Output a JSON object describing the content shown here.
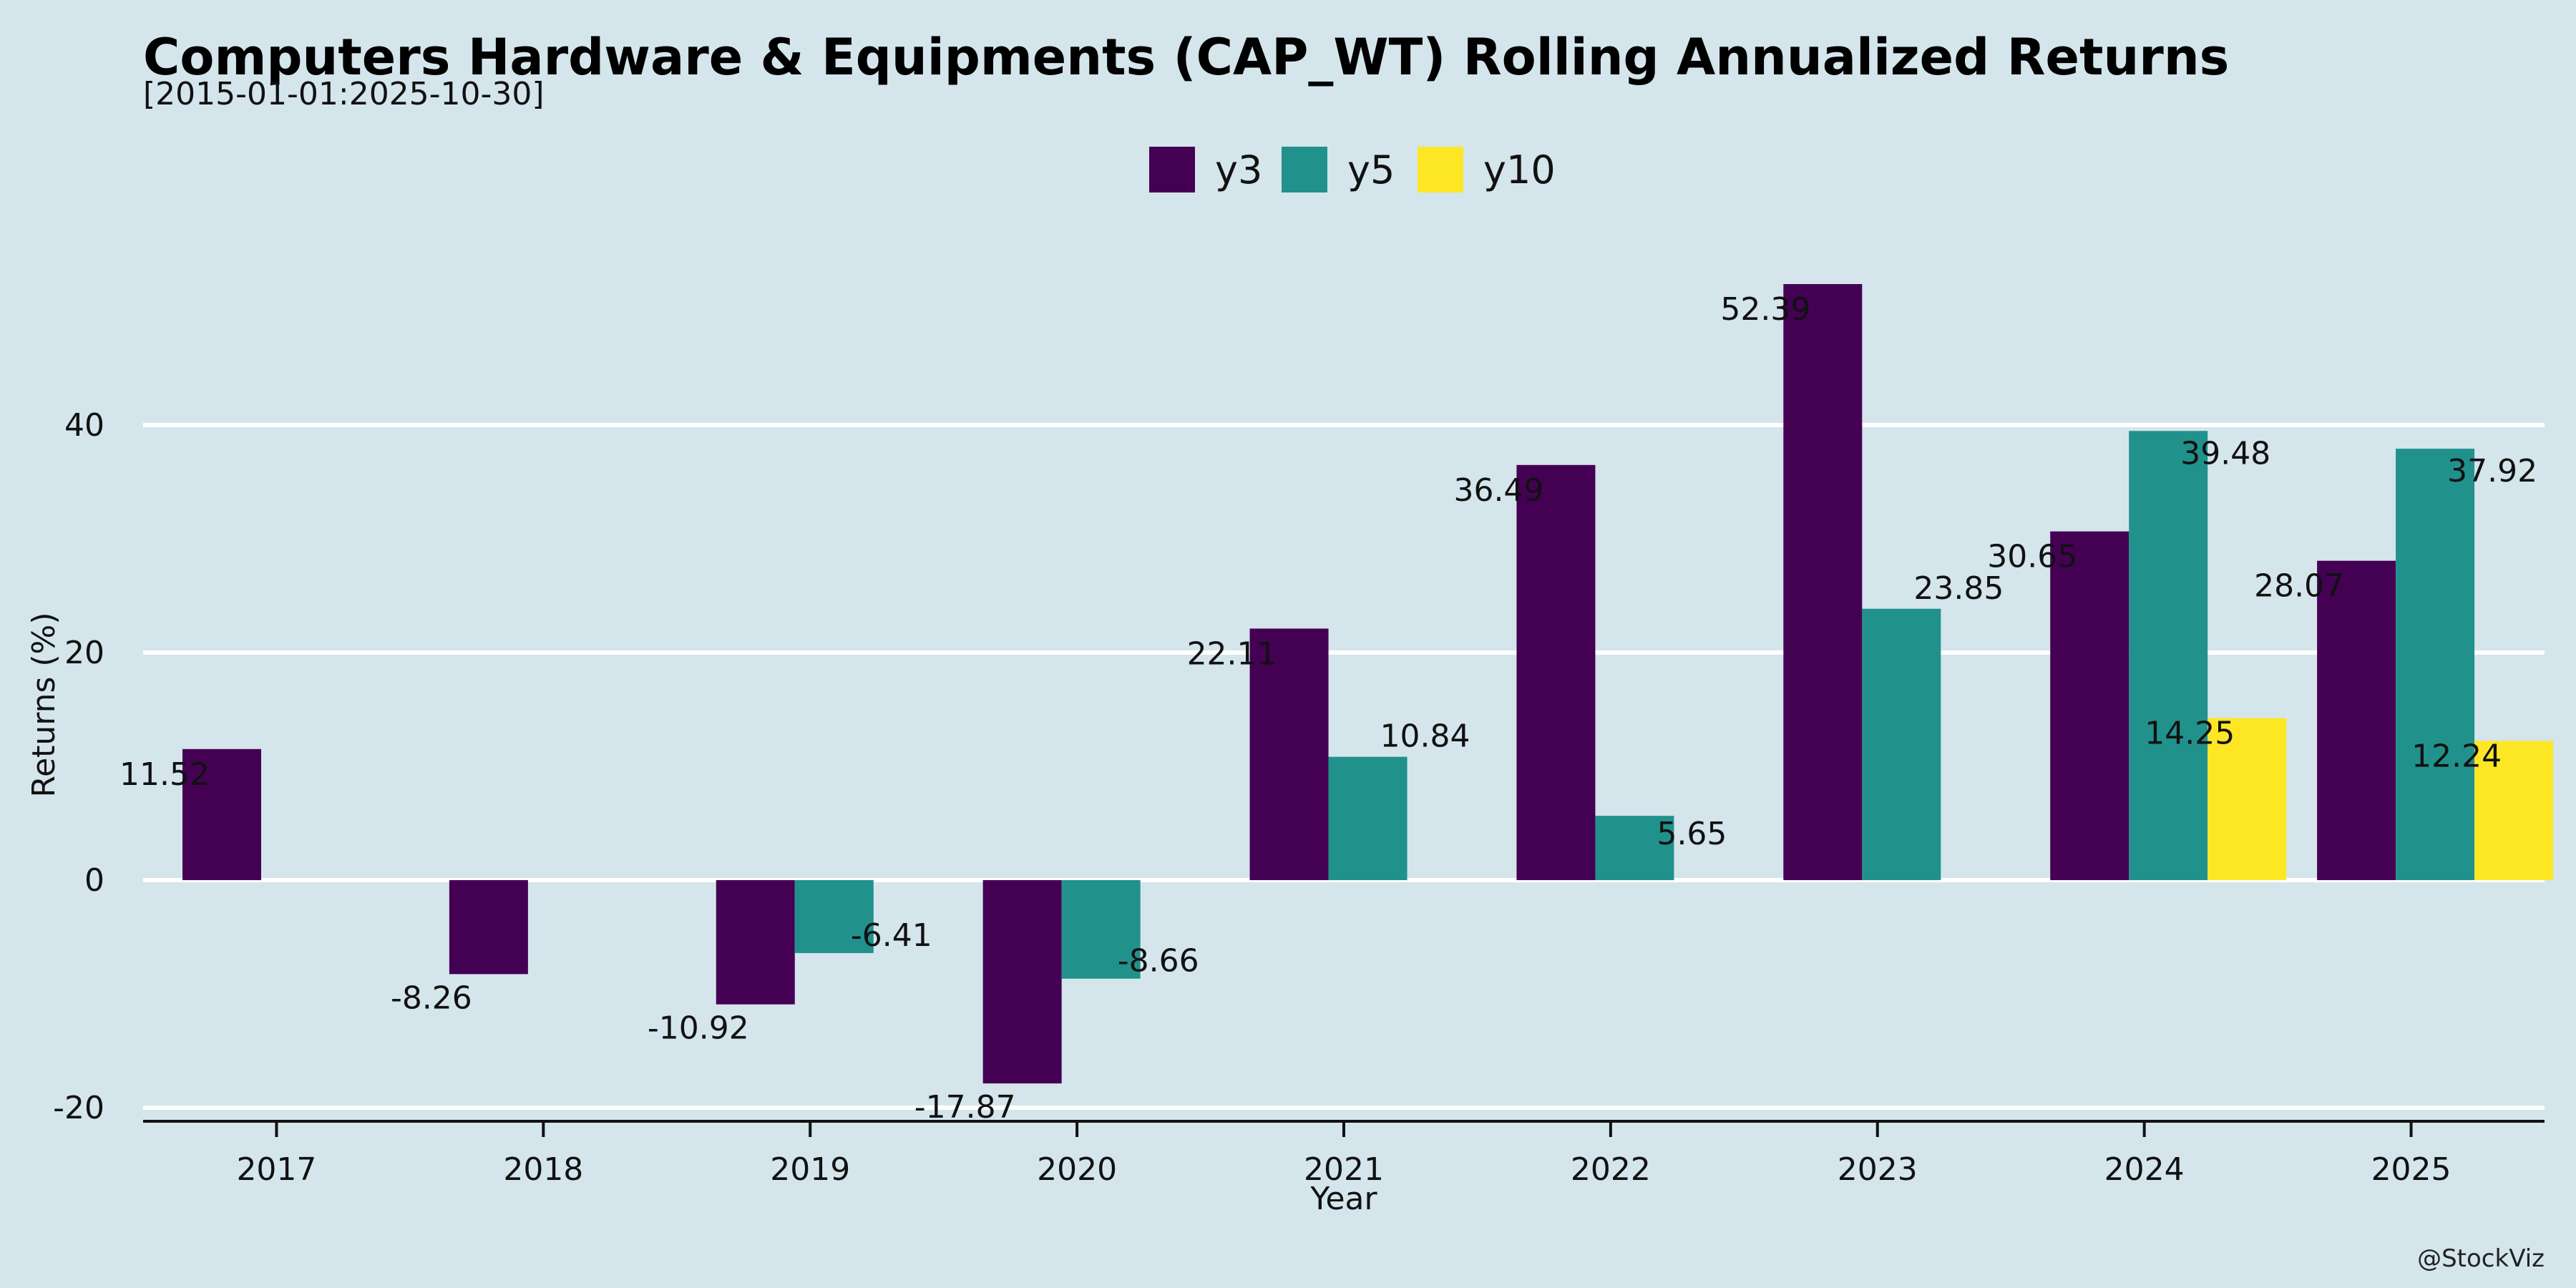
{
  "chart_data": {
    "type": "bar",
    "title": "Computers Hardware & Equipments (CAP_WT) Rolling Annualized Returns",
    "subtitle": "[2015-01-01:2025-10-30]",
    "xlabel": "Year",
    "ylabel": "Returns (%)",
    "categories": [
      "2017",
      "2018",
      "2019",
      "2020",
      "2021",
      "2022",
      "2023",
      "2024",
      "2025"
    ],
    "series": [
      {
        "name": "y3",
        "color": "#440154",
        "values": [
          11.52,
          -8.26,
          -10.92,
          -17.87,
          22.11,
          36.49,
          52.39,
          30.65,
          28.07
        ],
        "labels": [
          "11.52",
          "-8.26",
          "-10.92",
          "-17.87",
          "22.11",
          "36.49",
          "52.39",
          "30.65",
          "28.07"
        ]
      },
      {
        "name": "y5",
        "color": "#21918c",
        "values": [
          null,
          null,
          -6.41,
          -8.66,
          10.84,
          5.65,
          23.85,
          39.48,
          37.92
        ],
        "labels": [
          "",
          "",
          "-6.41",
          "-8.66",
          "10.84",
          "5.65",
          "23.85",
          "39.48",
          "37.92"
        ]
      },
      {
        "name": "y10",
        "color": "#fde725",
        "values": [
          null,
          null,
          null,
          null,
          null,
          null,
          null,
          14.25,
          12.24
        ],
        "labels": [
          "",
          "",
          "",
          "",
          "",
          "",
          "",
          "14.25",
          "12.24"
        ]
      }
    ],
    "yticks": [
      -20,
      0,
      20,
      40
    ],
    "ytick_labels": [
      "-20",
      "0",
      "20",
      "40"
    ],
    "ylim": [
      -21.4,
      57.8
    ],
    "grid": true,
    "legend_position": "top-center",
    "credit": "@StockViz"
  }
}
